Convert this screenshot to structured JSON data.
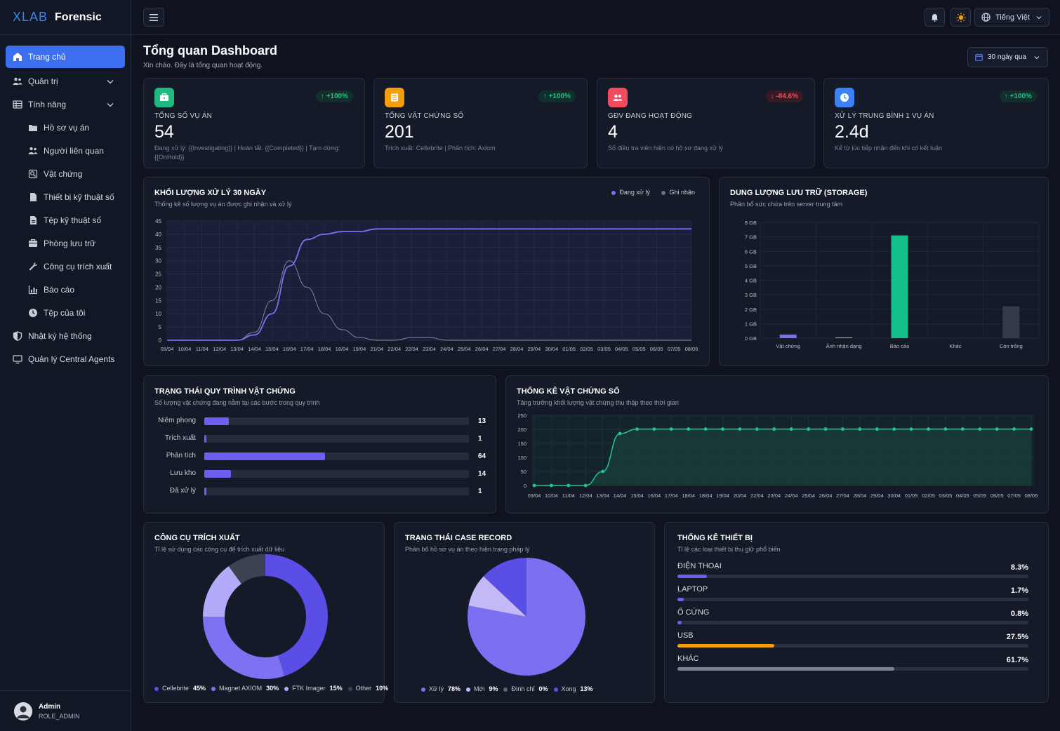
{
  "brand": {
    "logo_text": "XLAB",
    "name": "Forensic"
  },
  "sidebar": {
    "items": [
      {
        "label": "Trang chủ",
        "icon": "home-icon",
        "active": true
      },
      {
        "label": "Quản trị",
        "icon": "users-icon",
        "expandable": true
      },
      {
        "label": "Tính năng",
        "icon": "grid-icon",
        "expandable": true
      },
      {
        "label": "Hồ sơ vụ án",
        "icon": "folder-icon",
        "sub": true
      },
      {
        "label": "Người liên quan",
        "icon": "people-icon",
        "sub": true
      },
      {
        "label": "Vật chứng",
        "icon": "evidence-icon",
        "sub": true
      },
      {
        "label": "Thiết bị kỹ thuật số",
        "icon": "device-icon",
        "sub": true
      },
      {
        "label": "Tệp kỹ thuật số",
        "icon": "file-icon",
        "sub": true
      },
      {
        "label": "Phòng lưu trữ",
        "icon": "storage-icon",
        "sub": true
      },
      {
        "label": "Công cụ trích xuất",
        "icon": "wrench-icon",
        "sub": true
      },
      {
        "label": "Báo cáo",
        "icon": "report-icon",
        "sub": true
      },
      {
        "label": "Tệp của tôi",
        "icon": "myfiles-icon",
        "sub": true
      },
      {
        "label": "Nhật ký hệ thống",
        "icon": "shield-icon"
      },
      {
        "label": "Quản lý Central Agents",
        "icon": "monitor-icon"
      }
    ]
  },
  "user": {
    "name": "Admin",
    "role": "ROLE_ADMIN"
  },
  "topbar": {
    "language": "Tiếng Việt"
  },
  "header": {
    "title": "Tổng quan Dashboard",
    "subtitle": "Xin chào. Đây là tổng quan hoạt động.",
    "range": "30 ngày qua"
  },
  "stats": [
    {
      "label": "TỔNG SỐ VỤ ÁN",
      "value": "54",
      "badge": "↑ +100%",
      "trend": "up",
      "desc": "Đang xử lý: {{Investigating}} | Hoàn tất: {{Completed}} | Tạm dừng: {{OnHold}}",
      "color": "#1fb981",
      "icon": "briefcase-icon"
    },
    {
      "label": "TỔNG VẬT CHỨNG SỐ",
      "value": "201",
      "badge": "↑ +100%",
      "trend": "up",
      "desc": "Trích xuất: Cellebrite | Phân tích: Axiom",
      "color": "#f59e0b",
      "icon": "database-icon"
    },
    {
      "label": "GĐV ĐANG HOẠT ĐỘNG",
      "value": "4",
      "badge": "↓ -84.6%",
      "trend": "down",
      "desc": "Số điều tra viên hiện có hồ sơ đang xử lý",
      "color": "#ef4d5e",
      "icon": "team-icon"
    },
    {
      "label": "XỬ LÝ TRUNG BÌNH 1 VỤ ÁN",
      "value": "2.4d",
      "badge": "↑ +100%",
      "trend": "up",
      "desc": "Kể từ lúc tiếp nhận đến khi có kết luận",
      "color": "#3b82f6",
      "icon": "clock-icon"
    }
  ],
  "volume_card": {
    "title": "KHỐI LƯỢNG XỬ LÝ 30 NGÀY",
    "subtitle": "Thống kê số lượng vụ án được ghi nhận và xử lý",
    "legend_processing": "Đang xử lý",
    "legend_received": "Ghi nhận"
  },
  "storage_card": {
    "title": "DUNG LƯỢNG LƯU TRỮ (STORAGE)",
    "subtitle": "Phân bổ sức chứa trên server trung tâm"
  },
  "workflow_card": {
    "title": "TRẠNG THÁI QUY TRÌNH VẬT CHỨNG",
    "subtitle": "Số lượng vật chứng đang nằm tại các bước trong quy trình",
    "rows": [
      {
        "label": "Niêm phong",
        "value": 13
      },
      {
        "label": "Trích xuất",
        "value": 1
      },
      {
        "label": "Phân tích",
        "value": 64
      },
      {
        "label": "Lưu kho",
        "value": 14
      },
      {
        "label": "Đã xử lý",
        "value": 1
      }
    ],
    "max": 140
  },
  "evidence_card": {
    "title": "THỐNG KÊ VẬT CHỨNG SỐ",
    "subtitle": "Tăng trưởng khối lượng vật chứng thu thập theo thời gian"
  },
  "tools_card": {
    "title": "CÔNG CỤ TRÍCH XUẤT",
    "subtitle": "Tỉ lệ sử dụng các công cụ để trích xuất dữ liệu",
    "legend": [
      {
        "label": "Cellebrite",
        "pct": "45%",
        "color": "#5b4ee6"
      },
      {
        "label": "Magnet AXIOM",
        "pct": "30%",
        "color": "#7e72f3"
      },
      {
        "label": "FTK Imager",
        "pct": "15%",
        "color": "#b3abfa"
      },
      {
        "label": "Other",
        "pct": "10%",
        "color": "#3a4253"
      }
    ]
  },
  "case_card": {
    "title": "TRẠNG THÁI CASE RECORD",
    "subtitle": "Phân bổ hồ sơ vụ án theo hiện trạng pháp lý",
    "legend": [
      {
        "label": "Xử lý",
        "pct": "78%",
        "color": "#7b6ff2"
      },
      {
        "label": "Mới",
        "pct": "9%",
        "color": "#c5b8f7"
      },
      {
        "label": "Đình chỉ",
        "pct": "0%",
        "color": "#5d6475"
      },
      {
        "label": "Xong",
        "pct": "13%",
        "color": "#5b4ee6"
      }
    ]
  },
  "device_card": {
    "title": "THỐNG KÊ THIẾT BỊ",
    "subtitle": "Tỉ lệ các loại thiết bị thu giữ phổ biến",
    "rows": [
      {
        "label": "ĐIỆN THOẠI",
        "value": "8.3%",
        "fraction": 0.083,
        "color": "#6d5ff0"
      },
      {
        "label": "LAPTOP",
        "value": "1.7%",
        "fraction": 0.017,
        "color": "#6d5ff0"
      },
      {
        "label": "Ổ CỨNG",
        "value": "0.8%",
        "fraction": 0.008,
        "color": "#6d5ff0"
      },
      {
        "label": "USB",
        "value": "27.5%",
        "fraction": 0.275,
        "color": "#f59e0b"
      },
      {
        "label": "KHÁC",
        "value": "61.7%",
        "fraction": 0.617,
        "color": "#7c8293"
      }
    ]
  },
  "chart_data": [
    {
      "type": "line",
      "title": "KHỐI LƯỢNG XỬ LÝ 30 NGÀY",
      "ylim": [
        0,
        45
      ],
      "y_ticks": [
        0,
        5,
        10,
        15,
        20,
        25,
        30,
        35,
        40,
        45
      ],
      "x": [
        "09/04",
        "10/04",
        "11/04",
        "12/04",
        "13/04",
        "14/04",
        "15/04",
        "16/04",
        "17/04",
        "18/04",
        "18/04",
        "19/04",
        "21/04",
        "22/04",
        "22/04",
        "23/04",
        "24/04",
        "25/04",
        "26/04",
        "27/04",
        "28/04",
        "29/04",
        "30/04",
        "01/05",
        "02/05",
        "03/05",
        "04/05",
        "05/05",
        "06/05",
        "07/05",
        "08/05"
      ],
      "series": [
        {
          "name": "Đang xử lý",
          "color": "#7b6ff2",
          "values": [
            0,
            0,
            0,
            0,
            0,
            2,
            10,
            28,
            38,
            40,
            41,
            41,
            42,
            42,
            42,
            42,
            42,
            42,
            42,
            42,
            42,
            42,
            42,
            42,
            42,
            42,
            42,
            42,
            42,
            42,
            42
          ]
        },
        {
          "name": "Ghi nhận",
          "color": "#8a90a0",
          "values": [
            0,
            0,
            0,
            0,
            0,
            3,
            15,
            30,
            20,
            10,
            4,
            1,
            0,
            0,
            1,
            1,
            0,
            0,
            0,
            0,
            0,
            0,
            0,
            0,
            0,
            0,
            0,
            0,
            0,
            0,
            0
          ]
        }
      ]
    },
    {
      "type": "bar",
      "title": "DUNG LƯỢNG LƯU TRỮ (STORAGE)",
      "categories": [
        "Vật chứng",
        "Ảnh nhận dạng",
        "Báo cáo",
        "Khác",
        "Còn trống"
      ],
      "values": [
        0.25,
        0.05,
        7.1,
        0,
        2.2
      ],
      "colors": [
        "#7b6ff2",
        "#f59e0b",
        "#13c08a",
        "#7b6ff2",
        "#343a48"
      ],
      "ylim": [
        0,
        8
      ],
      "y_ticks": [
        "0 GB",
        "1 GB",
        "2 GB",
        "3 GB",
        "4 GB",
        "5 GB",
        "6 GB",
        "7 GB",
        "8 GB"
      ]
    },
    {
      "type": "area",
      "title": "THỐNG KÊ VẬT CHỨNG SỐ",
      "ylim": [
        0,
        250
      ],
      "y_ticks": [
        0,
        50,
        100,
        150,
        200,
        250
      ],
      "x": [
        "09/04",
        "10/04",
        "11/04",
        "12/04",
        "13/04",
        "14/04",
        "15/04",
        "16/04",
        "17/04",
        "18/04",
        "18/04",
        "19/04",
        "20/04",
        "22/04",
        "23/04",
        "24/04",
        "25/04",
        "26/04",
        "27/04",
        "28/04",
        "29/04",
        "30/04",
        "01/05",
        "02/05",
        "03/05",
        "04/05",
        "05/05",
        "06/05",
        "07/05",
        "08/05"
      ],
      "series": [
        {
          "name": "Vật chứng",
          "color": "#22c595",
          "values": [
            0,
            0,
            0,
            0,
            50,
            185,
            201,
            201,
            201,
            201,
            201,
            201,
            201,
            201,
            201,
            201,
            201,
            201,
            201,
            201,
            201,
            201,
            201,
            201,
            201,
            201,
            201,
            201,
            201,
            201
          ]
        }
      ]
    },
    {
      "type": "pie",
      "title": "CÔNG CỤ TRÍCH XUẤT",
      "donut": true,
      "categories": [
        "Cellebrite",
        "Magnet AXIOM",
        "FTK Imager",
        "Other"
      ],
      "values": [
        45,
        30,
        15,
        10
      ],
      "colors": [
        "#5b4ee6",
        "#7e72f3",
        "#b3abfa",
        "#3a4253"
      ]
    },
    {
      "type": "pie",
      "title": "TRẠNG THÁI CASE RECORD",
      "categories": [
        "Xử lý",
        "Mới",
        "Đình chỉ",
        "Xong"
      ],
      "values": [
        78,
        9,
        0,
        13
      ],
      "colors": [
        "#7b6ff2",
        "#c5b8f7",
        "#5d6475",
        "#5b4ee6"
      ]
    }
  ]
}
